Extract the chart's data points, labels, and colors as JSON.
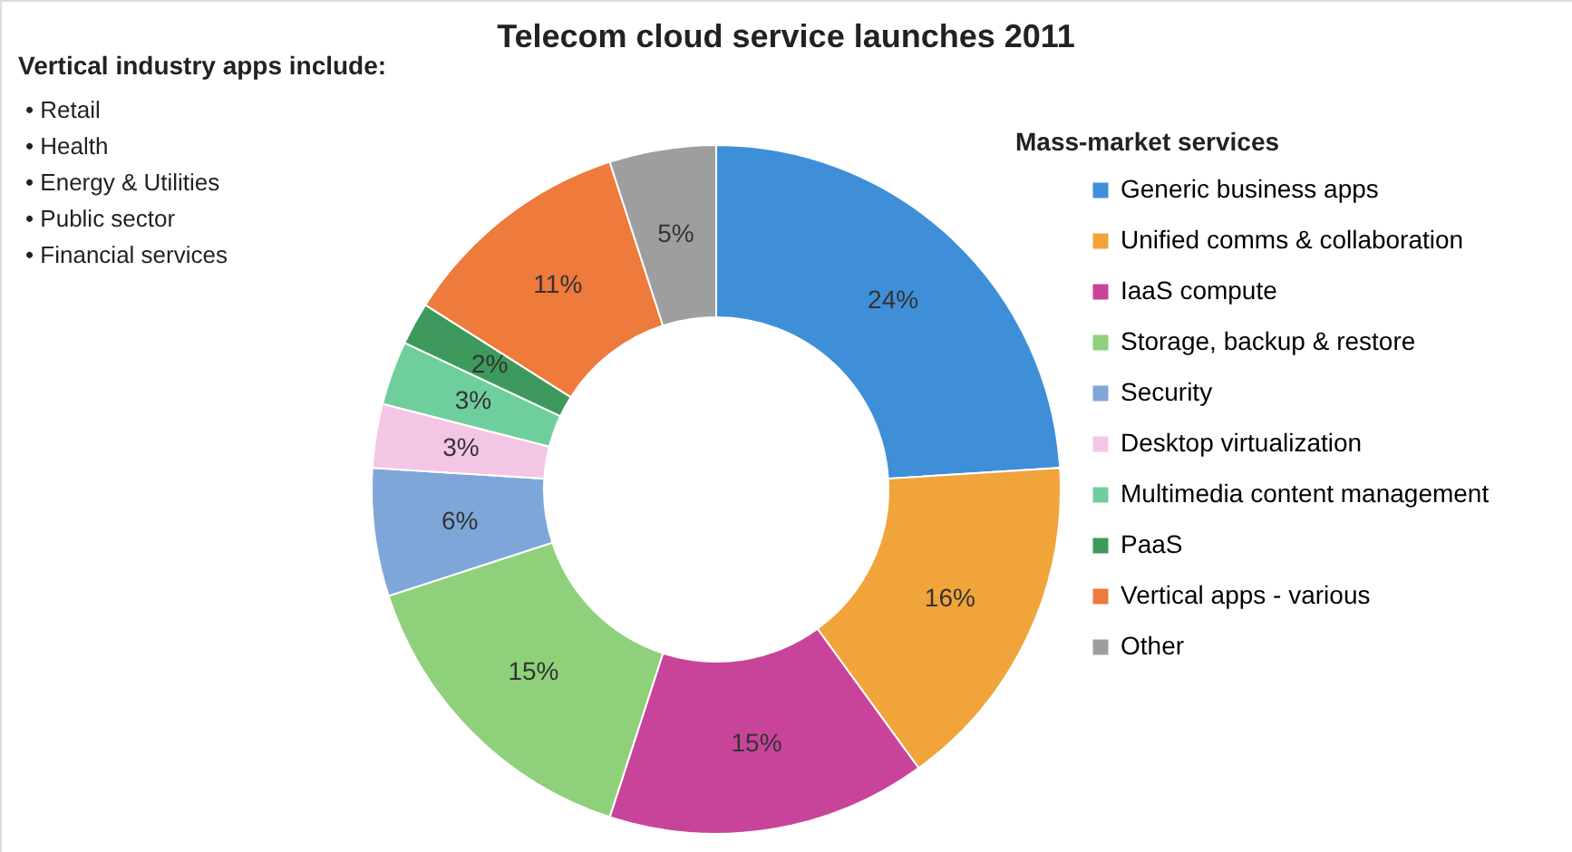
{
  "chart_data": {
    "type": "donut",
    "title": "Telecom cloud service launches 2011",
    "categories": [
      "Generic business apps",
      "Unified comms & collaboration",
      "IaaS compute",
      "Storage, backup & restore",
      "Security",
      "Desktop virtualization",
      "Multimedia content management",
      "PaaS",
      "Vertical apps - various",
      "Other"
    ],
    "values": [
      24,
      16,
      15,
      15,
      6,
      3,
      3,
      2,
      11,
      5
    ],
    "colors": [
      "#3f8fd8",
      "#f0a43a",
      "#c8449a",
      "#8fd07a",
      "#7fa6d8",
      "#f4c6e6",
      "#6fcf9c",
      "#3e9a5c",
      "#ee7a3c",
      "#9e9e9e"
    ],
    "value_labels": [
      "24%",
      "16%",
      "15%",
      "15%",
      "6%",
      "3%",
      "3%",
      "2%",
      "11%",
      "5%"
    ],
    "legend": "right",
    "annotations": [
      "Vertical industry apps include:",
      "• Retail",
      "• Health",
      "• Energy & Utilities",
      "• Public sector",
      "• Financial services",
      "Mass-market services"
    ]
  }
}
